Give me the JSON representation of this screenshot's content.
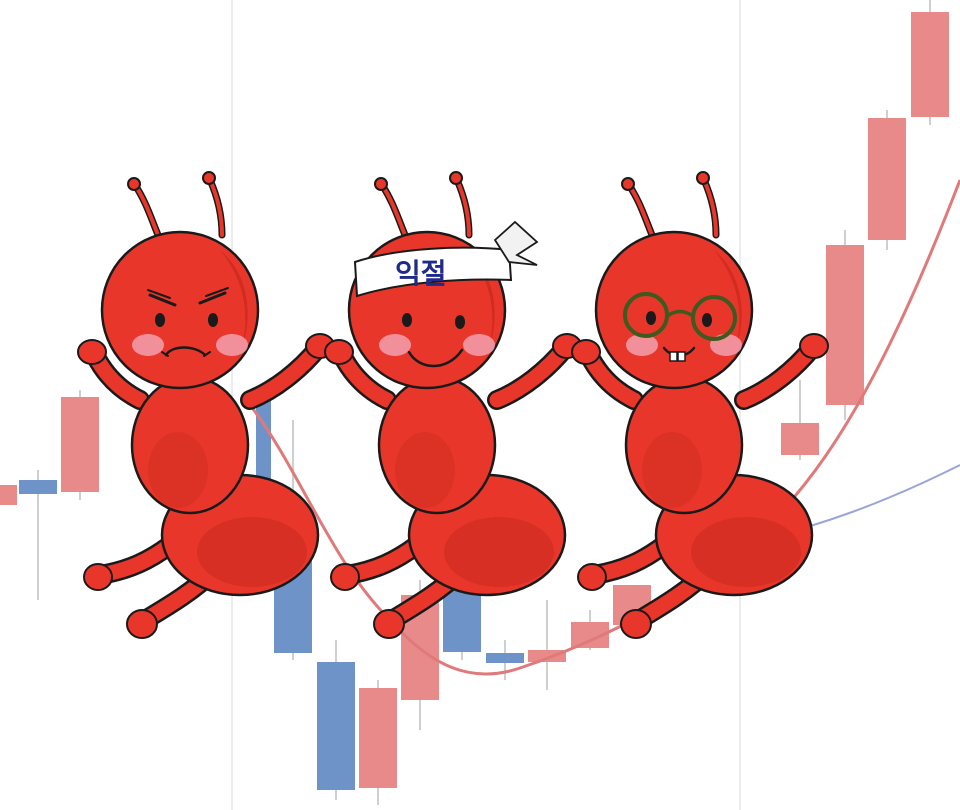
{
  "scene": {
    "description_free": true
  },
  "colors": {
    "background": "#ffffff",
    "bull_candle": "#e98a8a",
    "bear_candle": "#6d93c8",
    "ma_short": "#e07a7a",
    "ma_long": "#9aa6d8",
    "ant_body": "#e8372a",
    "ant_shadow": "#b82218",
    "outline": "#1a1a1a",
    "blush": "#f29aa6",
    "headband_text": "#1f2a8a",
    "glasses": "#3e5a1f"
  },
  "ants": [
    {
      "name": "angry-ant",
      "expression": "angry"
    },
    {
      "name": "headband-ant",
      "expression": "smiling",
      "headband_text": "익절"
    },
    {
      "name": "glasses-ant",
      "expression": "buck-teeth-glasses"
    }
  ]
}
